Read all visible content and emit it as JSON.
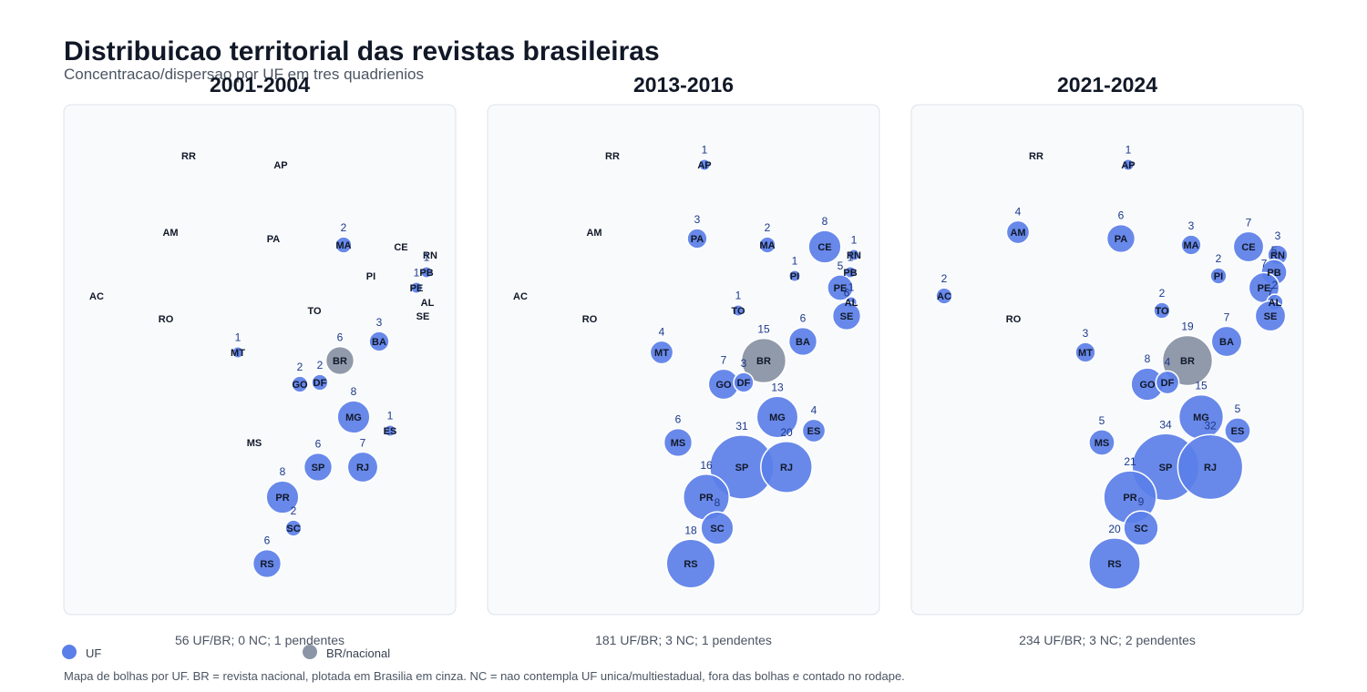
{
  "title": "Distribuicao territorial das revistas brasileiras",
  "subtitle": "Concentracao/dispersao por UF em tres quadrienios",
  "caption": "Mapa de bolhas por UF. BR = revista nacional, plotada em Brasilia em cinza. NC = nao contempla UF unica/multiestadual, fora das bolhas e contado no rodape.",
  "legend": [
    {
      "label": "UF",
      "color": "#5b7fe8"
    },
    {
      "label": "BR/nacional",
      "color": "#8b95a5"
    }
  ],
  "colors": {
    "uf": "#5b7fe8",
    "br": "#8b95a5",
    "panel_bg": "#f8fafc"
  },
  "chart_data": {
    "type": "scatter",
    "uf_order": [
      "RR",
      "AP",
      "AM",
      "PA",
      "MA",
      "CE",
      "RN",
      "PI",
      "PB",
      "PE",
      "AL",
      "SE",
      "AC",
      "RO",
      "TO",
      "BA",
      "MT",
      "BR",
      "GO",
      "DF",
      "MG",
      "ES",
      "MS",
      "SP",
      "RJ",
      "PR",
      "SC",
      "RS"
    ],
    "panels": [
      {
        "period": "2001-2004",
        "footer": "56 UF/BR; 0 NC; 1 pendentes",
        "counts": {
          "MA": 2,
          "PB": 1,
          "PE": 1,
          "MT": 1,
          "BR": 6,
          "BA": 3,
          "GO": 2,
          "DF": 2,
          "MG": 8,
          "ES": 1,
          "SP": 6,
          "RJ": 7,
          "PR": 8,
          "SC": 2,
          "RS": 6
        }
      },
      {
        "period": "2013-2016",
        "footer": "181 UF/BR; 3 NC; 1 pendentes",
        "counts": {
          "AP": 1,
          "PA": 3,
          "MA": 2,
          "CE": 8,
          "RN": 1,
          "PI": 1,
          "PB": 1,
          "PE": 5,
          "AL": 1,
          "SE": 6,
          "TO": 1,
          "BA": 6,
          "MT": 4,
          "BR": 15,
          "GO": 7,
          "DF": 3,
          "MG": 13,
          "ES": 4,
          "MS": 6,
          "SP": 31,
          "RJ": 20,
          "PR": 16,
          "SC": 8,
          "RS": 18
        }
      },
      {
        "period": "2021-2024",
        "footer": "234 UF/BR; 3 NC; 2 pendentes",
        "counts": {
          "AP": 1,
          "AM": 4,
          "PA": 6,
          "MA": 3,
          "CE": 7,
          "RN": 3,
          "PI": 2,
          "PB": 5,
          "PE": 7,
          "AL": 2,
          "SE": 7,
          "AC": 2,
          "TO": 2,
          "BA": 7,
          "MT": 3,
          "BR": 19,
          "GO": 8,
          "DF": 4,
          "MG": 15,
          "ES": 5,
          "MS": 5,
          "SP": 34,
          "RJ": 32,
          "PR": 21,
          "SC": 9,
          "RS": 20
        }
      }
    ]
  }
}
